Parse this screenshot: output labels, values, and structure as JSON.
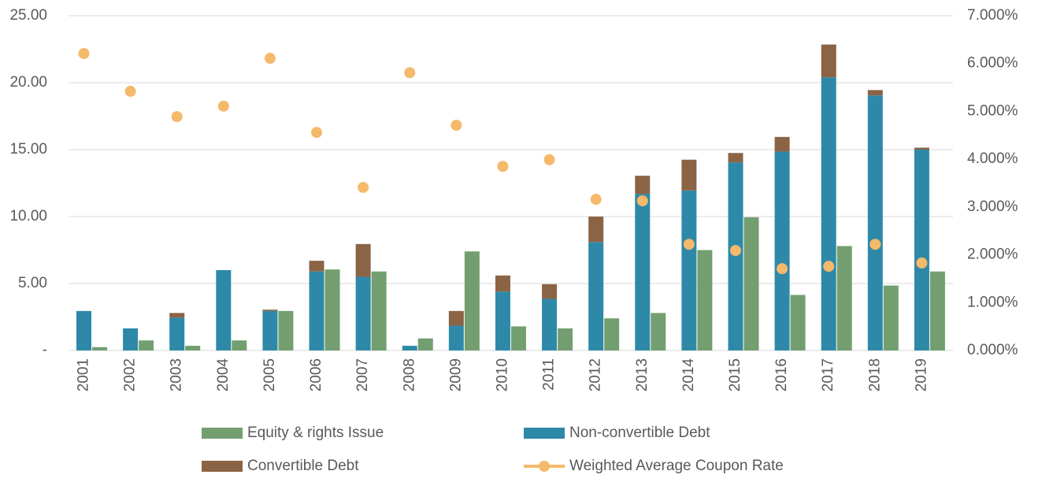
{
  "chart_data": {
    "type": "bar",
    "categories": [
      "2001",
      "2002",
      "2003",
      "2004",
      "2005",
      "2006",
      "2007",
      "2008",
      "2009",
      "2010",
      "2011",
      "2012",
      "2013",
      "2014",
      "2015",
      "2016",
      "2017",
      "2018",
      "2019"
    ],
    "series": [
      {
        "name": "Equity & rights Issue",
        "color": "#739f70",
        "type": "bar",
        "values": [
          0.25,
          0.75,
          0.35,
          0.75,
          2.95,
          6.05,
          5.9,
          0.9,
          7.4,
          1.8,
          1.65,
          2.4,
          2.8,
          7.5,
          9.95,
          4.15,
          7.8,
          4.85,
          5.9
        ]
      },
      {
        "name": "Non-convertible Debt",
        "color": "#2e89a8",
        "type": "bar",
        "stack": "debt",
        "values": [
          2.95,
          1.65,
          2.45,
          6.0,
          2.95,
          5.9,
          5.5,
          0.35,
          1.85,
          4.4,
          3.85,
          8.1,
          11.7,
          11.95,
          14.05,
          14.85,
          20.4,
          19.05,
          15.0
        ]
      },
      {
        "name": "Convertible Debt",
        "color": "#8a6445",
        "type": "bar",
        "stack": "debt",
        "values": [
          0,
          0,
          0.35,
          0,
          0.1,
          0.8,
          2.45,
          0,
          1.1,
          1.2,
          1.1,
          1.9,
          1.35,
          2.3,
          0.7,
          1.1,
          2.45,
          0.4,
          0.15
        ]
      },
      {
        "name": "Weighted Average Coupon Rate",
        "color": "#f5b96b",
        "type": "scatter",
        "axis": "y2",
        "values": [
          6.21,
          5.42,
          4.89,
          5.11,
          6.11,
          4.56,
          3.41,
          5.81,
          4.71,
          3.85,
          3.99,
          3.16,
          3.13,
          2.22,
          2.09,
          1.71,
          1.76,
          2.22,
          1.83
        ]
      }
    ],
    "ylim": [
      0,
      25
    ],
    "yticks": [
      {
        "value": 0,
        "label": "-"
      },
      {
        "value": 5,
        "label": "5.00"
      },
      {
        "value": 10,
        "label": "10.00"
      },
      {
        "value": 15,
        "label": "15.00"
      },
      {
        "value": 20,
        "label": "20.00"
      },
      {
        "value": 25,
        "label": "25.00"
      }
    ],
    "y2lim": [
      0,
      7
    ],
    "y2ticks": [
      {
        "value": 0,
        "label": "0.000%"
      },
      {
        "value": 1,
        "label": "1.000%"
      },
      {
        "value": 2,
        "label": "2.000%"
      },
      {
        "value": 3,
        "label": "3.000%"
      },
      {
        "value": 4,
        "label": "4.000%"
      },
      {
        "value": 5,
        "label": "5.000%"
      },
      {
        "value": 6,
        "label": "6.000%"
      },
      {
        "value": 7,
        "label": "7.000%"
      }
    ],
    "grid": true
  }
}
